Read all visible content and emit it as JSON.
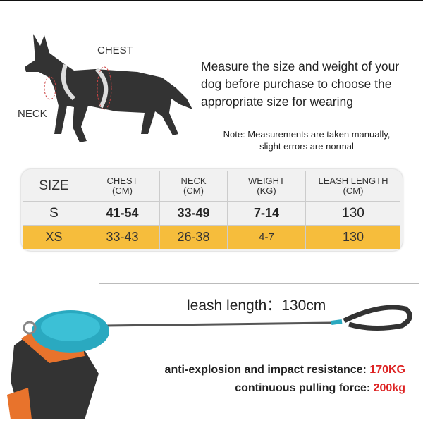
{
  "labels": {
    "chest": "CHEST",
    "neck": "NECK"
  },
  "intro": "Measure the size and weight of your dog before purchase to choose the appropriate size for wearing",
  "note": {
    "line1": "Note: Measurements are taken manually,",
    "line2": "slight errors are normal"
  },
  "table": {
    "headers": [
      {
        "main": "SIZE",
        "unit": ""
      },
      {
        "main": "CHEST",
        "unit": "(CM)"
      },
      {
        "main": "NECK",
        "unit": "(CM)"
      },
      {
        "main": "WEIGHT",
        "unit": "(KG)"
      },
      {
        "main": "LEASH LENGTH",
        "unit": "(CM)"
      }
    ],
    "rows": [
      [
        "S",
        "41-54",
        "33-49",
        "7-14",
        "130"
      ],
      [
        "XS",
        "33-43",
        "26-38",
        "4-7",
        "130"
      ]
    ],
    "highlight_color": "#f6bd3c"
  },
  "leash": {
    "label": "leash length：130cm"
  },
  "specs": [
    {
      "text": "anti-explosion and impact resistance: ",
      "value": "170KG"
    },
    {
      "text": "continuous pulling force: ",
      "value": "200kg"
    }
  ],
  "colors": {
    "accent": "#d22",
    "harness_orange": "#e8732c",
    "harness_teal": "#2aa9c0"
  }
}
